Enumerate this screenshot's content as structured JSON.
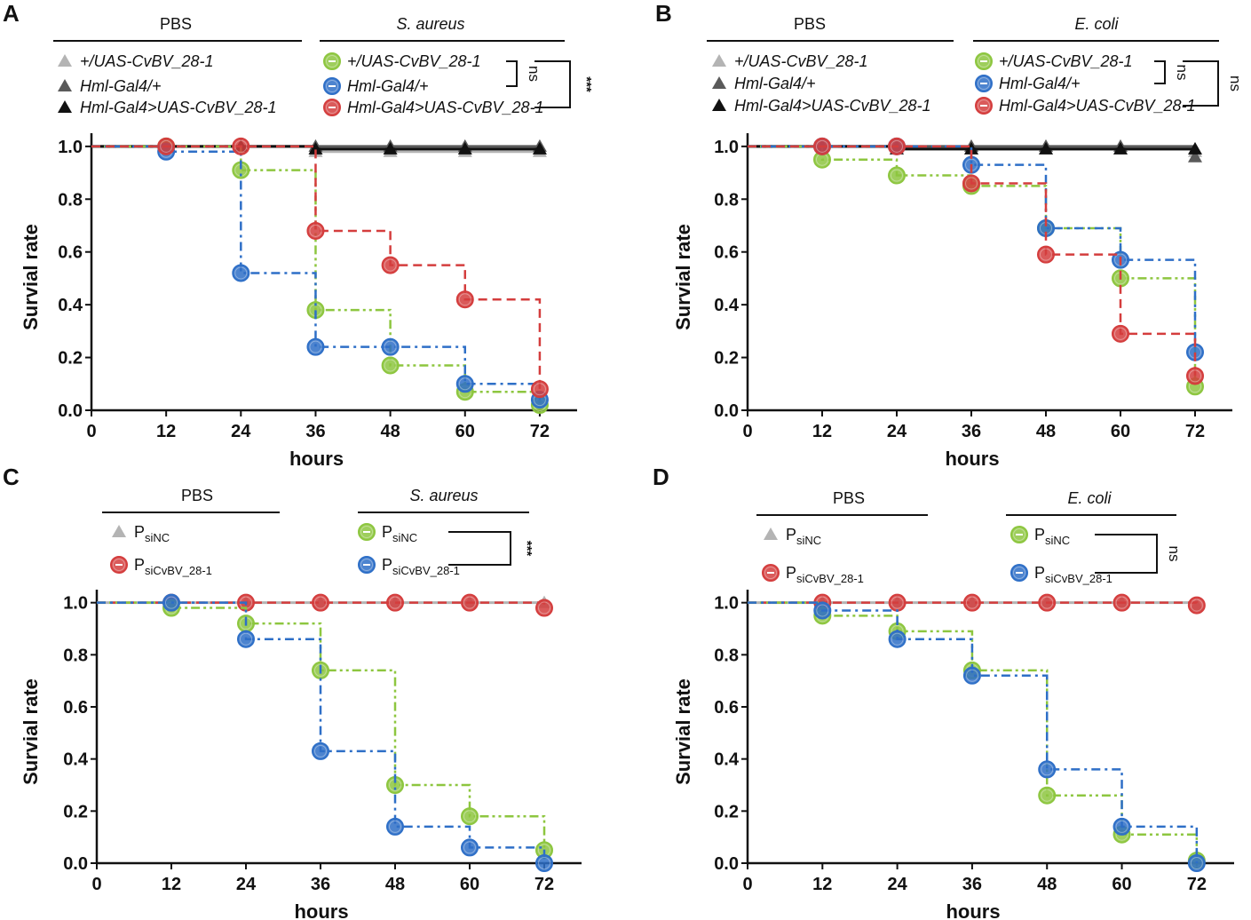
{
  "colors": {
    "green": "#8dc63f",
    "blue": "#2e6fc7",
    "red": "#d43d3d",
    "gray_light": "#b4b4b4",
    "gray_dark": "#5a5a5a",
    "black": "#111111"
  },
  "chart_data": [
    {
      "panel": "A",
      "type": "line",
      "style": "step",
      "title": "",
      "xlabel": "hours",
      "ylabel": "Survial rate",
      "x": [
        0,
        12,
        24,
        36,
        48,
        60,
        72
      ],
      "xlim": [
        0,
        78
      ],
      "ylim": [
        0,
        1.05
      ],
      "xticks": [
        "0",
        "12",
        "24",
        "36",
        "48",
        "60",
        "72"
      ],
      "yticks": [
        "0.0",
        "0.2",
        "0.4",
        "0.6",
        "0.8",
        "1.0"
      ],
      "groups": [
        {
          "label": "PBS",
          "italic": false
        },
        {
          "label": "S. aureus",
          "italic": true
        }
      ],
      "series": [
        {
          "name": "+/UAS-CvBV_28-1",
          "group": "PBS",
          "color": "gray_light",
          "marker": "triangle",
          "values": [
            1.0,
            1.0,
            1.0,
            0.98,
            0.98,
            0.98,
            0.98
          ]
        },
        {
          "name": "Hml-Gal4/+",
          "group": "PBS",
          "color": "gray_dark",
          "marker": "triangle",
          "values": [
            1.0,
            1.0,
            1.0,
            1.0,
            1.0,
            1.0,
            1.0
          ]
        },
        {
          "name": "Hml-Gal4>UAS-CvBV_28-1",
          "group": "PBS",
          "color": "black",
          "marker": "triangle",
          "values": [
            1.0,
            1.0,
            1.0,
            0.99,
            0.99,
            0.99,
            0.99
          ]
        },
        {
          "name": "+/UAS-CvBV_28-1",
          "group": "S. aureus",
          "color": "green",
          "marker": "circle",
          "dash": "dashdotdot",
          "values": [
            1.0,
            1.0,
            0.91,
            0.38,
            0.17,
            0.07,
            0.02
          ]
        },
        {
          "name": "Hml-Gal4/+",
          "group": "S. aureus",
          "color": "blue",
          "marker": "circle",
          "dash": "dashdot",
          "values": [
            1.0,
            0.98,
            0.52,
            0.24,
            0.24,
            0.1,
            0.04
          ]
        },
        {
          "name": "Hml-Gal4>UAS-CvBV_28-1",
          "group": "S. aureus",
          "color": "red",
          "marker": "circle",
          "dash": "dash",
          "values": [
            1.0,
            1.0,
            1.0,
            0.68,
            0.55,
            0.42,
            0.08
          ]
        }
      ],
      "significance": [
        {
          "label": "ns",
          "between": [
            3,
            4
          ]
        },
        {
          "label": "***",
          "between": [
            3,
            5
          ]
        }
      ]
    },
    {
      "panel": "B",
      "type": "line",
      "style": "step",
      "title": "",
      "xlabel": "hours",
      "ylabel": "Survial rate",
      "x": [
        0,
        12,
        24,
        36,
        48,
        60,
        72
      ],
      "xlim": [
        0,
        78
      ],
      "ylim": [
        0,
        1.05
      ],
      "xticks": [
        "0",
        "12",
        "24",
        "36",
        "48",
        "60",
        "72"
      ],
      "yticks": [
        "0.0",
        "0.2",
        "0.4",
        "0.6",
        "0.8",
        "1.0"
      ],
      "groups": [
        {
          "label": "PBS",
          "italic": false
        },
        {
          "label": "E. coli",
          "italic": true
        }
      ],
      "series": [
        {
          "name": "+/UAS-CvBV_28-1",
          "group": "PBS",
          "color": "gray_light",
          "marker": "triangle",
          "values": [
            1.0,
            1.0,
            1.0,
            0.99,
            0.99,
            0.99,
            0.98
          ]
        },
        {
          "name": "Hml-Gal4/+",
          "group": "PBS",
          "color": "gray_dark",
          "marker": "triangle",
          "values": [
            1.0,
            1.0,
            1.0,
            1.0,
            1.0,
            1.0,
            0.96
          ]
        },
        {
          "name": "Hml-Gal4>UAS-CvBV_28-1",
          "group": "PBS",
          "color": "black",
          "marker": "triangle",
          "values": [
            1.0,
            1.0,
            0.99,
            0.99,
            0.99,
            0.99,
            0.99
          ]
        },
        {
          "name": "+/UAS-CvBV_28-1",
          "group": "E. coli",
          "color": "green",
          "marker": "circle",
          "dash": "dashdotdot",
          "values": [
            1.0,
            0.95,
            0.89,
            0.85,
            0.69,
            0.5,
            0.09
          ]
        },
        {
          "name": "Hml-Gal4/+",
          "group": "E. coli",
          "color": "blue",
          "marker": "circle",
          "dash": "dashdot",
          "values": [
            1.0,
            1.0,
            1.0,
            0.93,
            0.69,
            0.57,
            0.22
          ]
        },
        {
          "name": "Hml-Gal4>UAS-CvBV_28-1",
          "group": "E. coli",
          "color": "red",
          "marker": "circle",
          "dash": "dash",
          "values": [
            1.0,
            1.0,
            1.0,
            0.86,
            0.59,
            0.29,
            0.13
          ]
        }
      ],
      "significance": [
        {
          "label": "ns",
          "between": [
            3,
            4
          ]
        },
        {
          "label": "ns",
          "between": [
            3,
            5
          ]
        }
      ]
    },
    {
      "panel": "C",
      "type": "line",
      "style": "step",
      "title": "",
      "xlabel": "hours",
      "ylabel": "Survial rate",
      "x": [
        0,
        12,
        24,
        36,
        48,
        60,
        72
      ],
      "xlim": [
        0,
        78
      ],
      "ylim": [
        0,
        1.05
      ],
      "xticks": [
        "0",
        "12",
        "24",
        "36",
        "48",
        "60",
        "72"
      ],
      "yticks": [
        "0.0",
        "0.2",
        "0.4",
        "0.6",
        "0.8",
        "1.0"
      ],
      "groups": [
        {
          "label": "PBS",
          "italic": false
        },
        {
          "label": "S. aureus",
          "italic": true
        }
      ],
      "series": [
        {
          "name": "P",
          "sub": "siNC",
          "group": "PBS",
          "color": "gray_light",
          "marker": "triangle",
          "values": [
            1.0,
            1.0,
            1.0,
            1.0,
            1.0,
            1.0,
            1.0
          ]
        },
        {
          "name": "P",
          "sub": "siCvBV_28-1",
          "group": "PBS",
          "color": "red",
          "marker": "circle",
          "dash": "dash",
          "values": [
            1.0,
            1.0,
            1.0,
            1.0,
            1.0,
            1.0,
            0.98
          ]
        },
        {
          "name": "P",
          "sub": "siNC",
          "group": "S. aureus",
          "color": "green",
          "marker": "circle",
          "dash": "dashdotdot",
          "values": [
            1.0,
            0.98,
            0.92,
            0.74,
            0.3,
            0.18,
            0.05
          ]
        },
        {
          "name": "P",
          "sub": "siCvBV_28-1",
          "group": "S. aureus",
          "color": "blue",
          "marker": "circle",
          "dash": "dashdot",
          "values": [
            1.0,
            1.0,
            0.86,
            0.43,
            0.14,
            0.06,
            0.0
          ]
        }
      ],
      "significance": [
        {
          "label": "***",
          "between": [
            2,
            3
          ]
        }
      ]
    },
    {
      "panel": "D",
      "type": "line",
      "style": "step",
      "title": "",
      "xlabel": "hours",
      "ylabel": "Survial rate",
      "x": [
        0,
        12,
        24,
        36,
        48,
        60,
        72
      ],
      "xlim": [
        0,
        78
      ],
      "ylim": [
        0,
        1.05
      ],
      "xticks": [
        "0",
        "12",
        "24",
        "36",
        "48",
        "60",
        "72"
      ],
      "yticks": [
        "0.0",
        "0.2",
        "0.4",
        "0.6",
        "0.8",
        "1.0"
      ],
      "groups": [
        {
          "label": "PBS",
          "italic": false
        },
        {
          "label": "E. coli",
          "italic": true
        }
      ],
      "series": [
        {
          "name": "P",
          "sub": "siNC",
          "group": "PBS",
          "color": "gray_light",
          "marker": "triangle",
          "values": [
            1.0,
            1.0,
            1.0,
            1.0,
            1.0,
            1.0,
            0.99
          ]
        },
        {
          "name": "P",
          "sub": "siCvBV_28-1",
          "group": "PBS",
          "color": "red",
          "marker": "circle",
          "dash": "dash",
          "values": [
            1.0,
            1.0,
            1.0,
            1.0,
            1.0,
            1.0,
            0.99
          ]
        },
        {
          "name": "P",
          "sub": "siNC",
          "group": "E. coli",
          "color": "green",
          "marker": "circle",
          "dash": "dashdotdot",
          "values": [
            1.0,
            0.95,
            0.89,
            0.74,
            0.26,
            0.11,
            0.01
          ]
        },
        {
          "name": "P",
          "sub": "siCvBV_28-1",
          "group": "E. coli",
          "color": "blue",
          "marker": "circle",
          "dash": "dashdot",
          "values": [
            1.0,
            0.97,
            0.86,
            0.72,
            0.36,
            0.14,
            0.0
          ]
        }
      ],
      "significance": [
        {
          "label": "ns",
          "between": [
            2,
            3
          ]
        }
      ]
    }
  ]
}
